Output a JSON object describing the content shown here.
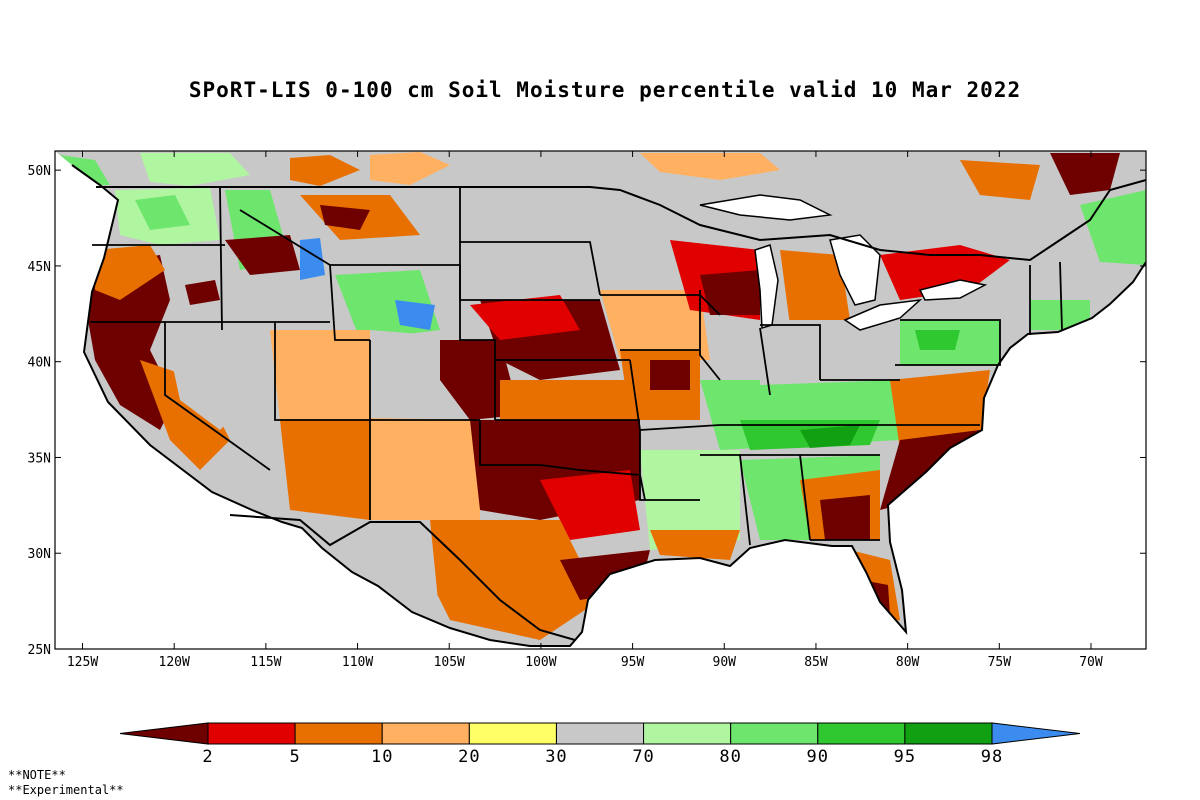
{
  "title": "SPoRT-LIS 0-100 cm Soil Moisture percentile valid 10 Mar 2022",
  "map": {
    "lat_labels": [
      "50N",
      "45N",
      "40N",
      "35N",
      "30N",
      "25N"
    ],
    "lon_labels": [
      "125W",
      "120W",
      "115W",
      "110W",
      "105W",
      "100W",
      "95W",
      "90W",
      "85W",
      "80W",
      "75W",
      "70W"
    ],
    "lat_range": [
      25,
      51
    ],
    "lon_range": [
      -126.5,
      -67
    ]
  },
  "colorbar": {
    "thresholds": [
      "2",
      "5",
      "10",
      "20",
      "30",
      "70",
      "80",
      "90",
      "95",
      "98"
    ],
    "colors": [
      "#6e0000",
      "#e00000",
      "#e87000",
      "#ffb060",
      "#ffff66",
      "#c8c8c8",
      "#b0f5a0",
      "#6ee66e",
      "#30c830",
      "#11a011",
      "#3c8cf0"
    ]
  },
  "notes": {
    "line1": "**NOTE**",
    "line2": "**Experimental**"
  }
}
